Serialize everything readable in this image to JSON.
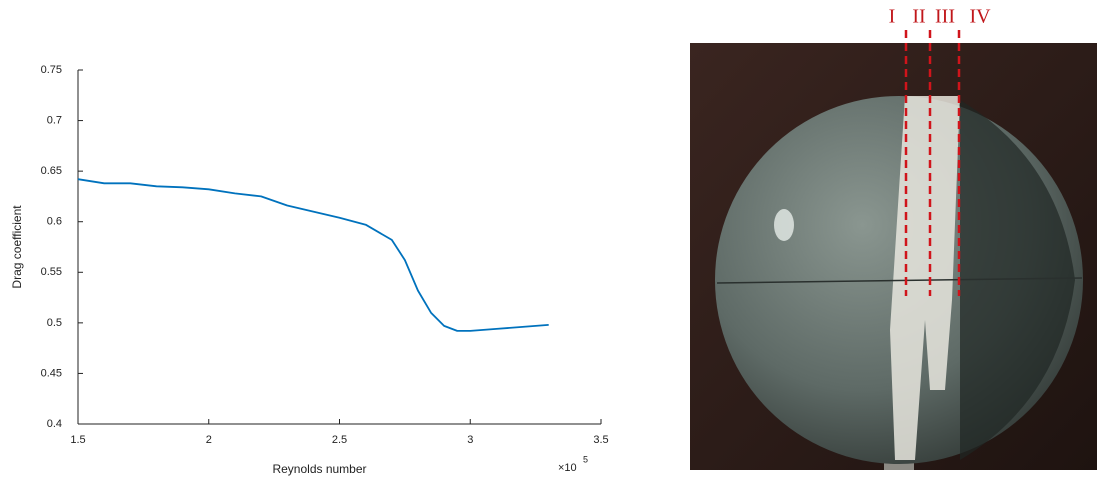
{
  "chart_data": {
    "type": "line",
    "x_label": "Reynolds number",
    "y_label": "Drag coefficient",
    "x_scale_label": "×10",
    "x_scale_exponent": "5",
    "x": [
      1.5,
      1.6,
      1.7,
      1.8,
      1.9,
      2.0,
      2.1,
      2.2,
      2.3,
      2.4,
      2.5,
      2.6,
      2.7,
      2.75,
      2.8,
      2.85,
      2.9,
      2.95,
      3.0,
      3.1,
      3.2,
      3.3
    ],
    "values": [
      0.642,
      0.638,
      0.638,
      0.635,
      0.634,
      0.632,
      0.628,
      0.625,
      0.616,
      0.61,
      0.604,
      0.597,
      0.582,
      0.562,
      0.532,
      0.51,
      0.497,
      0.492,
      0.492,
      0.494,
      0.496,
      0.498
    ],
    "color": "#0072bd",
    "xlim": [
      1.5,
      3.5
    ],
    "xticks": [
      1.5,
      2,
      2.5,
      3,
      3.5
    ],
    "ylim": [
      0.4,
      0.75
    ],
    "yticks": [
      0.4,
      0.45,
      0.5,
      0.55,
      0.6,
      0.65,
      0.7,
      0.75
    ],
    "photo_labels": [
      "I",
      "II",
      "III",
      "IV"
    ]
  }
}
